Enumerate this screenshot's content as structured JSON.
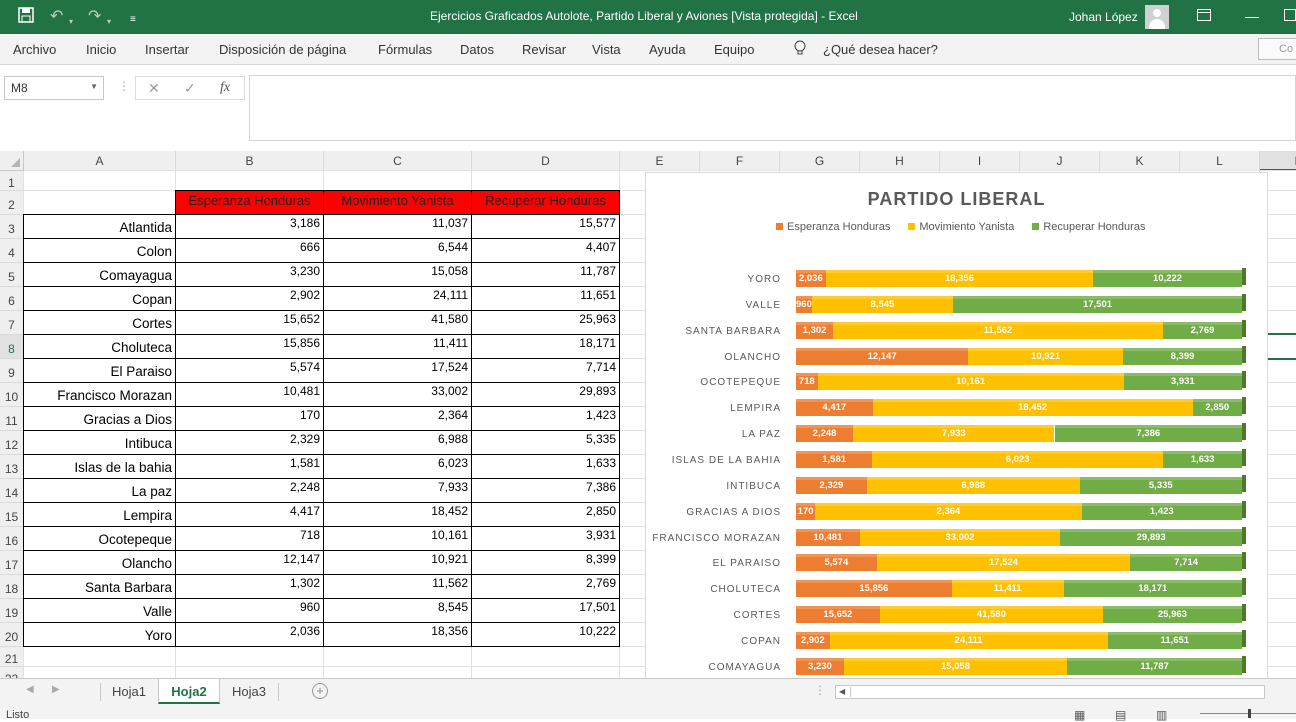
{
  "window": {
    "title": "Ejercicios Graficados Autolote, Partido Liberal y Aviones  [Vista protegida]  -  Excel",
    "user": "Johan López"
  },
  "ribbon": {
    "tabs": [
      "Archivo",
      "Inicio",
      "Insertar",
      "Disposición de página",
      "Fórmulas",
      "Datos",
      "Revisar",
      "Vista",
      "Ayuda",
      "Equipo"
    ],
    "search": "¿Qué desea hacer?",
    "right_button": "Co"
  },
  "formula_bar": {
    "name_box": "M8",
    "fx": "fx",
    "cancel": "✕",
    "confirm": "✓",
    "value": ""
  },
  "grid": {
    "columns": [
      "A",
      "B",
      "C",
      "D",
      "E",
      "F",
      "G",
      "H",
      "I",
      "J",
      "K",
      "L",
      "M"
    ],
    "rows": [
      "1",
      "2",
      "3",
      "4",
      "5",
      "6",
      "7",
      "8",
      "9",
      "10",
      "11",
      "12",
      "13",
      "14",
      "15",
      "16",
      "17",
      "18",
      "19",
      "20",
      "21",
      "22"
    ],
    "selected_row": "8",
    "selected_col": "M",
    "headers": [
      "Esperanza Honduras",
      "Movimiento Yanista",
      "Recuperar Honduras"
    ],
    "data": [
      {
        "name": "Atlantida",
        "b": "3,186",
        "c": "11,037",
        "d": "15,577"
      },
      {
        "name": "Colon",
        "b": "666",
        "c": "6,544",
        "d": "4,407"
      },
      {
        "name": "Comayagua",
        "b": "3,230",
        "c": "15,058",
        "d": "11,787"
      },
      {
        "name": "Copan",
        "b": "2,902",
        "c": "24,111",
        "d": "11,651"
      },
      {
        "name": "Cortes",
        "b": "15,652",
        "c": "41,580",
        "d": "25,963"
      },
      {
        "name": "Choluteca",
        "b": "15,856",
        "c": "11,411",
        "d": "18,171"
      },
      {
        "name": "El Paraiso",
        "b": "5,574",
        "c": "17,524",
        "d": "7,714"
      },
      {
        "name": "Francisco Morazan",
        "b": "10,481",
        "c": "33,002",
        "d": "29,893"
      },
      {
        "name": "Gracias a Dios",
        "b": "170",
        "c": "2,364",
        "d": "1,423"
      },
      {
        "name": "Intibuca",
        "b": "2,329",
        "c": "6,988",
        "d": "5,335"
      },
      {
        "name": "Islas de la bahia",
        "b": "1,581",
        "c": "6,023",
        "d": "1,633"
      },
      {
        "name": "La paz",
        "b": "2,248",
        "c": "7,933",
        "d": "7,386"
      },
      {
        "name": "Lempira",
        "b": "4,417",
        "c": "18,452",
        "d": "2,850"
      },
      {
        "name": "Ocotepeque",
        "b": "718",
        "c": "10,161",
        "d": "3,931"
      },
      {
        "name": "Olancho",
        "b": "12,147",
        "c": "10,921",
        "d": "8,399"
      },
      {
        "name": "Santa Barbara",
        "b": "1,302",
        "c": "11,562",
        "d": "2,769"
      },
      {
        "name": "Valle",
        "b": "960",
        "c": "8,545",
        "d": "17,501"
      },
      {
        "name": "Yoro",
        "b": "2,036",
        "c": "18,356",
        "d": "10,222"
      }
    ]
  },
  "chart_data": {
    "type": "bar",
    "orientation": "horizontal",
    "stacked": "percent",
    "title": "PARTIDO LIBERAL",
    "legend_position": "top",
    "colors": [
      "#ed7d31",
      "#ffc000",
      "#70ad47"
    ],
    "categories": [
      "YORO",
      "VALLE",
      "SANTA BARBARA",
      "OLANCHO",
      "OCOTEPEQUE",
      "LEMPIRA",
      "LA PAZ",
      "ISLAS DE LA BAHIA",
      "INTIBUCA",
      "GRACIAS A DIOS",
      "FRANCISCO MORAZAN",
      "EL PARAISO",
      "CHOLUTECA",
      "CORTES",
      "COPAN",
      "COMAYAGUA"
    ],
    "series": [
      {
        "name": "Esperanza Honduras",
        "values": [
          2036,
          960,
          1302,
          12147,
          718,
          4417,
          2248,
          1581,
          2329,
          170,
          10481,
          5574,
          15856,
          15652,
          2902,
          3230
        ]
      },
      {
        "name": "Movimiento Yanista",
        "values": [
          18356,
          8545,
          11562,
          10921,
          10161,
          18452,
          7933,
          6023,
          6988,
          2364,
          33002,
          17524,
          11411,
          41580,
          24111,
          15058
        ]
      },
      {
        "name": "Recuperar Honduras",
        "values": [
          10222,
          17501,
          2769,
          8399,
          3931,
          2850,
          7386,
          1633,
          5335,
          1423,
          29893,
          7714,
          18171,
          25963,
          11651,
          11787
        ]
      }
    ]
  },
  "sheets": {
    "tabs": [
      "Hoja1",
      "Hoja2",
      "Hoja3"
    ],
    "active": "Hoja2"
  },
  "status": {
    "text": "Listo"
  }
}
